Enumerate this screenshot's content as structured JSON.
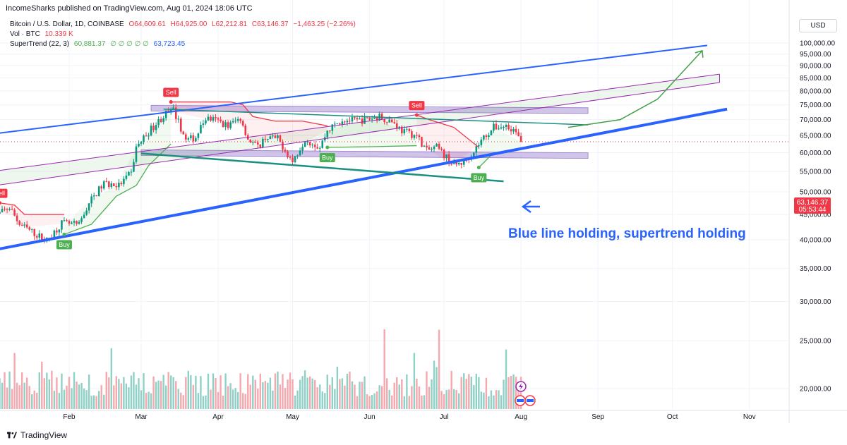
{
  "header": {
    "publisher": "IncomeSharks published on TradingView.com, Aug 01, 2024 18:06 UTC"
  },
  "legend": {
    "symbol": "Bitcoin / U.S. Dollar, 1D, COINBASE",
    "open": "O64,609.61",
    "high": "H64,925.00",
    "low": "L62,212.81",
    "close": "C63,146.37",
    "change": "−1,463.25 (−2.26%)",
    "vol_label": "Vol · BTC",
    "vol_value": "10.339 K",
    "st_label": "SuperTrend (22, 3)",
    "st_value1": "60,881.37",
    "st_zeros": "∅ ∅ ∅ ∅ ∅",
    "st_value2": "63,723.45"
  },
  "currency": "USD",
  "price_badge": {
    "price": "63,146.37",
    "countdown": "05:53:44"
  },
  "annotation": "Blue line holding, supertrend holding",
  "signals": {
    "sell": "Sell",
    "buy": "Buy"
  },
  "footer": {
    "brand": "TradingView"
  },
  "colors": {
    "up": "#089981",
    "down": "#f23645",
    "vol_up": "#8fd1c6",
    "vol_down": "#f5a8ad",
    "st_up": "#4caf50",
    "st_down": "#f23645",
    "channel_blue": "#2962ff",
    "channel_purple": "#9c27b0",
    "teal_line": "#1b8f80",
    "annotation": "#2962ff"
  },
  "chart_data": {
    "type": "candlestick",
    "x_ticks": [
      "Feb",
      "Mar",
      "Apr",
      "May",
      "Jun",
      "Jul",
      "Aug",
      "Sep",
      "Oct",
      "Nov"
    ],
    "y_ticks": [
      "100,000.00",
      "95,000.00",
      "90,000.00",
      "85,000.00",
      "80,000.00",
      "75,000.00",
      "70,000.00",
      "65,000.00",
      "60,000.00",
      "55,000.00",
      "50,000.00",
      "45,000.00",
      "40,000.00",
      "35,000.00",
      "30,000.00",
      "25,000.00",
      "20,000.00"
    ],
    "last_price": 63146.37,
    "close_path": [
      [
        "2024-01-01",
        44200
      ],
      [
        "2024-01-08",
        46500
      ],
      [
        "2024-01-12",
        43000
      ],
      [
        "2024-01-18",
        41200
      ],
      [
        "2024-01-23",
        39800
      ],
      [
        "2024-01-29",
        43200
      ],
      [
        "2024-02-05",
        42800
      ],
      [
        "2024-02-09",
        47500
      ],
      [
        "2024-02-15",
        52000
      ],
      [
        "2024-02-21",
        51500
      ],
      [
        "2024-02-26",
        54500
      ],
      [
        "2024-02-28",
        61500
      ],
      [
        "2024-03-05",
        67000
      ],
      [
        "2024-03-11",
        72000
      ],
      [
        "2024-03-14",
        73000
      ],
      [
        "2024-03-19",
        63500
      ],
      [
        "2024-03-23",
        64500
      ],
      [
        "2024-03-27",
        70500
      ],
      [
        "2024-04-01",
        69500
      ],
      [
        "2024-04-05",
        68000
      ],
      [
        "2024-04-10",
        70500
      ],
      [
        "2024-04-13",
        64000
      ],
      [
        "2024-04-17",
        61500
      ],
      [
        "2024-04-20",
        64500
      ],
      [
        "2024-04-25",
        64000
      ],
      [
        "2024-05-01",
        57500
      ],
      [
        "2024-05-06",
        64000
      ],
      [
        "2024-05-12",
        61500
      ],
      [
        "2024-05-15",
        66500
      ],
      [
        "2024-05-21",
        70000
      ],
      [
        "2024-05-27",
        69500
      ],
      [
        "2024-06-05",
        71000
      ],
      [
        "2024-06-10",
        69500
      ],
      [
        "2024-06-14",
        66500
      ],
      [
        "2024-06-20",
        64900
      ],
      [
        "2024-06-24",
        60500
      ],
      [
        "2024-06-28",
        61500
      ],
      [
        "2024-07-05",
        56500
      ],
      [
        "2024-07-09",
        57500
      ],
      [
        "2024-07-13",
        60500
      ],
      [
        "2024-07-17",
        64500
      ],
      [
        "2024-07-21",
        67500
      ],
      [
        "2024-07-27",
        68000
      ],
      [
        "2024-07-29",
        66800
      ],
      [
        "2024-08-01",
        63146
      ]
    ],
    "supertrend": {
      "period": 22,
      "multiplier": 3,
      "down_segments": [
        [
          [
            "2024-01-04",
            47500
          ],
          [
            "2024-01-10",
            47000
          ],
          [
            "2024-01-14",
            45000
          ],
          [
            "2024-01-30",
            45000
          ]
        ],
        [
          [
            "2024-03-13",
            76000
          ],
          [
            "2024-04-06",
            76000
          ],
          [
            "2024-04-11",
            75000
          ],
          [
            "2024-04-15",
            71000
          ],
          [
            "2024-04-24",
            69500
          ],
          [
            "2024-05-05",
            69500
          ],
          [
            "2024-05-15",
            68000
          ]
        ],
        [
          [
            "2024-06-20",
            71500
          ],
          [
            "2024-06-25",
            70000
          ],
          [
            "2024-07-05",
            67500
          ],
          [
            "2024-07-15",
            61500
          ]
        ]
      ],
      "up_segments": [
        [
          [
            "2024-01-30",
            41000
          ],
          [
            "2024-02-10",
            43000
          ],
          [
            "2024-02-20",
            49000
          ],
          [
            "2024-02-28",
            51500
          ],
          [
            "2024-03-04",
            56500
          ],
          [
            "2024-03-13",
            62500
          ]
        ],
        [
          [
            "2024-05-15",
            61500
          ],
          [
            "2024-06-02",
            61700
          ],
          [
            "2024-06-20",
            62000
          ]
        ],
        [
          [
            "2024-07-15",
            56000
          ],
          [
            "2024-07-21",
            60000
          ],
          [
            "2024-08-01",
            60881
          ]
        ]
      ],
      "signals": [
        {
          "type": "sell",
          "date": "2024-01-04",
          "price": 47500
        },
        {
          "type": "buy",
          "date": "2024-01-30",
          "price": 41000
        },
        {
          "type": "sell",
          "date": "2024-03-13",
          "price": 76000
        },
        {
          "type": "buy",
          "date": "2024-05-15",
          "price": 61500
        },
        {
          "type": "sell",
          "date": "2024-06-20",
          "price": 71500
        },
        {
          "type": "buy",
          "date": "2024-07-15",
          "price": 56000
        }
      ]
    },
    "lines": {
      "channel_top": [
        [
          "2023-12-25",
          64800
        ],
        [
          "2024-10-15",
          98900
        ]
      ],
      "channel_bottom_thick": [
        [
          "2023-12-25",
          37500
        ],
        [
          "2024-10-23",
          73500
        ]
      ],
      "purple_upper": [
        [
          "2023-12-25",
          54400
        ],
        [
          "2024-10-20",
          86500
        ]
      ],
      "purple_lower": [
        [
          "2023-12-25",
          50800
        ],
        [
          "2024-10-20",
          83200
        ]
      ],
      "teal_top": [
        [
          "2024-03-10",
          73500
        ],
        [
          "2024-08-28",
          68300
        ]
      ],
      "teal_bottom": [
        [
          "2024-03-01",
          59800
        ],
        [
          "2024-07-25",
          52500
        ]
      ],
      "resistance_zone": [
        [
          "2024-03-05",
          73800
        ],
        [
          "2024-08-28",
          73000
        ]
      ],
      "support_zone": [
        [
          "2024-03-01",
          60000
        ],
        [
          "2024-08-28",
          59200
        ]
      ],
      "projection": [
        [
          "2024-08-20",
          67500
        ],
        [
          "2024-09-10",
          70000
        ],
        [
          "2024-09-25",
          77000
        ],
        [
          "2024-10-13",
          96500
        ]
      ]
    },
    "volume_axis_max": 40000
  }
}
